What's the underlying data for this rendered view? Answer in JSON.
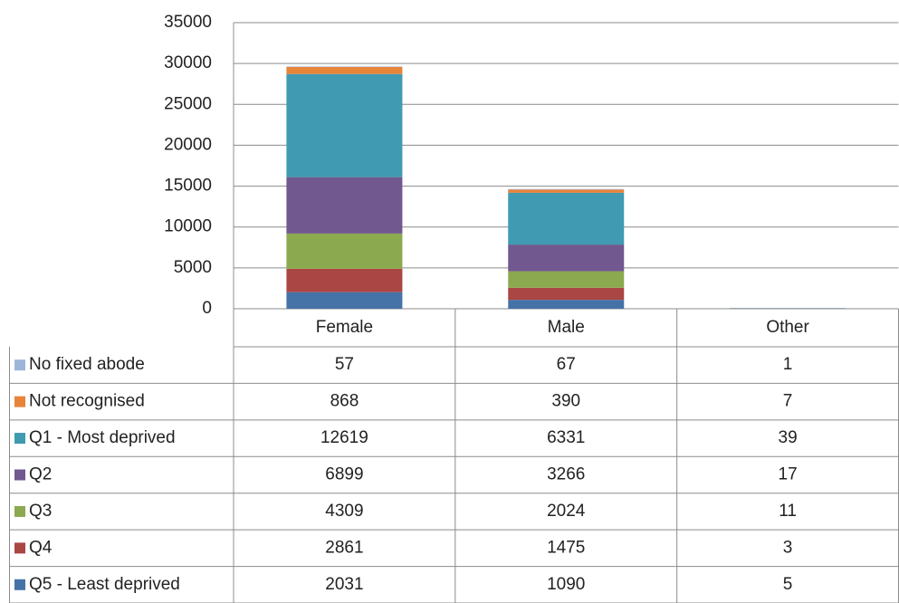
{
  "chart_data": {
    "type": "stacked_bar",
    "categories": [
      "Female",
      "Male",
      "Other"
    ],
    "series": [
      {
        "name": "No fixed abode",
        "color": "#9db5d8",
        "values": [
          57,
          67,
          1
        ]
      },
      {
        "name": "Not recognised",
        "color": "#e8833a",
        "values": [
          868,
          390,
          7
        ]
      },
      {
        "name": "Q1 - Most deprived",
        "color": "#3f9ab2",
        "values": [
          12619,
          6331,
          39
        ]
      },
      {
        "name": "Q2",
        "color": "#71588f",
        "values": [
          6899,
          3266,
          17
        ]
      },
      {
        "name": "Q3",
        "color": "#8ba94f",
        "values": [
          4309,
          2024,
          11
        ]
      },
      {
        "name": "Q4",
        "color": "#aa4643",
        "values": [
          2861,
          1475,
          3
        ]
      },
      {
        "name": "Q5 - Least deprived",
        "color": "#4572a7",
        "values": [
          2031,
          1090,
          5
        ]
      }
    ],
    "ylim": [
      0,
      35000
    ],
    "yticks": [
      0,
      5000,
      10000,
      15000,
      20000,
      25000,
      30000,
      35000
    ],
    "grid": true
  }
}
